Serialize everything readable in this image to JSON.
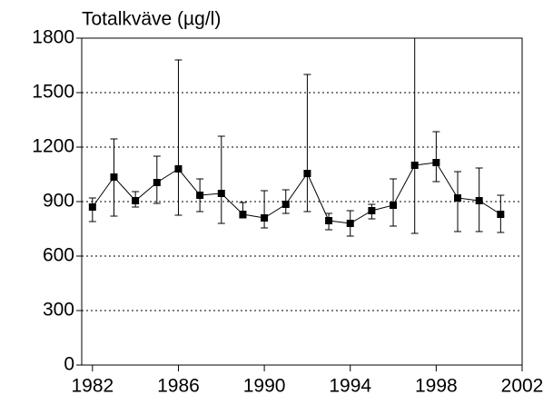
{
  "chart_data": {
    "type": "line",
    "title": "Totalkväve (µg/l)",
    "x": [
      1982,
      1983,
      1984,
      1985,
      1986,
      1987,
      1988,
      1989,
      1990,
      1991,
      1992,
      1993,
      1994,
      1995,
      1996,
      1997,
      1998,
      1999,
      2000,
      2001
    ],
    "series": [
      {
        "color": "#000000",
        "values": [
          870,
          1035,
          905,
          1005,
          1080,
          935,
          945,
          830,
          810,
          885,
          1055,
          795,
          780,
          850,
          880,
          1100,
          1115,
          920,
          905,
          830
        ],
        "upper": [
          920,
          1245,
          955,
          1150,
          1680,
          1025,
          1260,
          895,
          960,
          965,
          1600,
          835,
          850,
          885,
          1025,
          1800,
          1285,
          1065,
          1085,
          935
        ],
        "lower": [
          790,
          820,
          870,
          890,
          825,
          845,
          780,
          810,
          755,
          835,
          845,
          745,
          710,
          805,
          765,
          725,
          1010,
          735,
          735,
          730
        ]
      }
    ],
    "xlim": [
      1981.5,
      2002
    ],
    "xticks": [
      1982,
      1986,
      1990,
      1994,
      1998,
      2002
    ],
    "ylim": [
      0,
      1800
    ],
    "yticks": [
      0,
      300,
      600,
      900,
      1200,
      1500,
      1800
    ],
    "grid": true
  }
}
